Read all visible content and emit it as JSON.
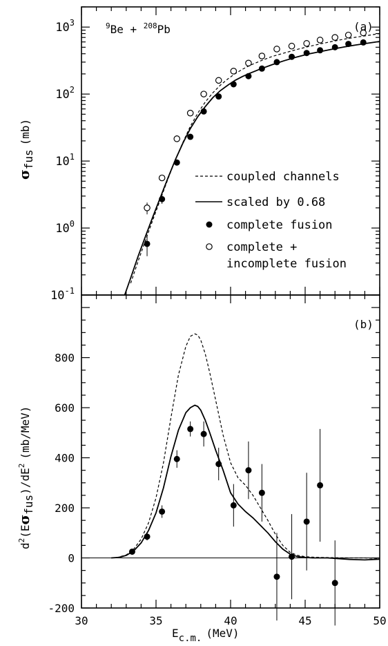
{
  "chart_data": [
    {
      "panel": "(a)",
      "type": "line",
      "title": "9Be + 208Pb",
      "title_parts": {
        "sup1": "9",
        "base1": "Be + ",
        "sup2": "208",
        "base2": "Pb"
      },
      "ylabel": {
        "greek": "σ",
        "sub": "fus",
        "unit": "(mb)"
      },
      "yscale": "log",
      "ylim": [
        0.1,
        2000
      ],
      "xlim": [
        30,
        50
      ],
      "yticks": [
        {
          "base": "10",
          "exp": "-1",
          "value": 0.1
        },
        {
          "base": "10",
          "exp": "0",
          "value": 1
        },
        {
          "base": "10",
          "exp": "1",
          "value": 10
        },
        {
          "base": "10",
          "exp": "2",
          "value": 100
        },
        {
          "base": "10",
          "exp": "3",
          "value": 1000
        }
      ],
      "legend": {
        "placement": "bottom-right",
        "entries": [
          {
            "label": "coupled channels",
            "style": "dashed"
          },
          {
            "label": "scaled by 0.68",
            "style": "solid"
          },
          {
            "label": "complete fusion",
            "style": "filled-circle"
          },
          {
            "label": "complete +",
            "label2": "incomplete fusion",
            "style": "open-circle"
          }
        ]
      },
      "series": [
        {
          "style": "dashed",
          "x": [
            33.3,
            33.8,
            34.3,
            34.8,
            35.3,
            35.8,
            36.3,
            36.8,
            37.3,
            37.8,
            38.3,
            38.8,
            39.3,
            39.8,
            40.3,
            40.8,
            41.3,
            42,
            42.8,
            43.6,
            44.4,
            45.2,
            46,
            46.8,
            47.6,
            48.4,
            49.2,
            50
          ],
          "y": [
            0.15,
            0.32,
            0.66,
            1.35,
            2.7,
            5.4,
            10.5,
            19,
            33,
            52,
            76,
            104,
            135,
            167,
            201,
            235,
            268,
            312,
            365,
            410,
            460,
            510,
            560,
            610,
            660,
            705,
            750,
            800
          ]
        },
        {
          "style": "solid",
          "x": [
            32.9,
            33.3,
            33.8,
            34.3,
            34.8,
            35.3,
            35.8,
            36.3,
            36.8,
            37.3,
            37.8,
            38.3,
            38.8,
            39.3,
            39.8,
            40.3,
            40.8,
            41.3,
            42,
            42.8,
            43.6,
            44.4,
            45.2,
            46,
            46.8,
            47.6,
            48.4,
            49.2,
            50
          ],
          "y": [
            0.1,
            0.18,
            0.38,
            0.76,
            1.5,
            2.9,
            5.6,
            10.5,
            18.5,
            30.5,
            46,
            65,
            88,
            112,
            135,
            160,
            183,
            205,
            237,
            275,
            315,
            355,
            395,
            430,
            468,
            505,
            540,
            575,
            610
          ]
        },
        {
          "style": "filled-circle",
          "x": [
            34.4,
            35.4,
            36.4,
            37.3,
            38.2,
            39.2,
            40.2,
            41.2,
            42.1,
            43.1,
            44.1,
            45.1,
            46,
            47,
            47.9,
            48.9
          ],
          "y": [
            0.58,
            2.7,
            9.5,
            23,
            55,
            92,
            140,
            185,
            240,
            300,
            360,
            410,
            450,
            500,
            560,
            590
          ],
          "err_low": [
            0.38,
            2.3,
            8.6,
            21,
            52,
            88,
            135,
            180,
            235,
            294,
            353,
            403,
            442,
            490,
            550,
            580
          ],
          "err_high": [
            0.8,
            3.1,
            10.5,
            25,
            58,
            96,
            145,
            190,
            245,
            306,
            367,
            417,
            458,
            510,
            570,
            600
          ]
        },
        {
          "style": "open-circle",
          "x": [
            34.4,
            35.4,
            36.4,
            37.3,
            38.2,
            39.2,
            40.2,
            41.2,
            42.1,
            43.1,
            44.1,
            45.1,
            46,
            47,
            47.9,
            48.9
          ],
          "y": [
            2.0,
            5.6,
            21.5,
            52,
            100,
            160,
            220,
            290,
            370,
            470,
            520,
            570,
            640,
            700,
            760,
            820
          ],
          "err_low": [
            1.6,
            5.1,
            20,
            49,
            96,
            155,
            215,
            284,
            363,
            462,
            512,
            562,
            630,
            690,
            750,
            810
          ],
          "err_high": [
            2.4,
            6.1,
            23,
            55,
            104,
            165,
            225,
            296,
            377,
            478,
            528,
            578,
            650,
            710,
            770,
            830
          ]
        }
      ]
    },
    {
      "panel": "(b)",
      "type": "line",
      "ylabel": {
        "pre": "d",
        "sup1": "2",
        "mid": "(E",
        "greek": "σ",
        "sub": "fus",
        "post": ")/dE",
        "sup2": "2",
        "unit": "(mb/MeV)"
      },
      "xlabel": {
        "base": "E",
        "sub": "c.m.",
        "unit": "(MeV)"
      },
      "xlim": [
        30,
        50
      ],
      "ylim": [
        -200,
        1050
      ],
      "xticks": [
        30,
        35,
        40,
        45,
        50
      ],
      "yticks": [
        -200,
        0,
        200,
        400,
        600,
        800
      ],
      "series": [
        {
          "style": "dashed",
          "x": [
            32,
            32.5,
            33,
            33.5,
            34,
            34.5,
            35,
            35.5,
            36,
            36.5,
            37,
            37.3,
            37.6,
            37.8,
            38,
            38.3,
            38.6,
            39,
            39.5,
            40,
            40.5,
            41,
            41.5,
            42,
            42.5,
            43,
            43.5,
            44,
            44.5,
            45,
            45.5,
            46,
            47,
            48,
            49,
            50
          ],
          "y": [
            0,
            3,
            12,
            35,
            75,
            140,
            240,
            380,
            560,
            730,
            845,
            885,
            895,
            890,
            870,
            815,
            740,
            630,
            490,
            380,
            320,
            290,
            250,
            200,
            150,
            95,
            50,
            22,
            10,
            5,
            3,
            2,
            1,
            0,
            0,
            -2
          ]
        },
        {
          "style": "solid",
          "x": [
            32,
            32.5,
            33,
            33.5,
            34,
            34.5,
            35,
            35.5,
            36,
            36.5,
            37,
            37.3,
            37.6,
            37.8,
            38,
            38.3,
            38.6,
            39,
            39.5,
            40,
            40.5,
            41,
            41.5,
            42,
            42.5,
            43,
            43.5,
            44,
            44.5,
            45,
            45.5,
            46,
            46.5,
            47,
            48,
            49,
            50
          ],
          "y": [
            0,
            2,
            10,
            28,
            60,
            110,
            180,
            280,
            405,
            510,
            580,
            600,
            610,
            605,
            590,
            550,
            500,
            430,
            350,
            260,
            215,
            185,
            160,
            130,
            100,
            65,
            35,
            15,
            5,
            2,
            0,
            0,
            0,
            -2,
            -6,
            -8,
            -5
          ]
        },
        {
          "style": "filled-circle",
          "x": [
            33.4,
            34.4,
            35.4,
            36.4,
            37.3,
            38.2,
            39.2,
            40.2,
            41.2,
            42.1,
            43.1,
            44.1,
            45.1,
            46,
            47
          ],
          "y": [
            25,
            85,
            185,
            395,
            515,
            495,
            375,
            210,
            350,
            260,
            -75,
            5,
            145,
            290,
            -100
          ],
          "err_low": [
            15,
            70,
            160,
            360,
            485,
            445,
            310,
            125,
            235,
            145,
            -250,
            -165,
            -50,
            65,
            -270
          ],
          "err_high": [
            35,
            100,
            210,
            430,
            545,
            545,
            440,
            295,
            465,
            375,
            100,
            175,
            340,
            515,
            70
          ]
        }
      ]
    }
  ]
}
